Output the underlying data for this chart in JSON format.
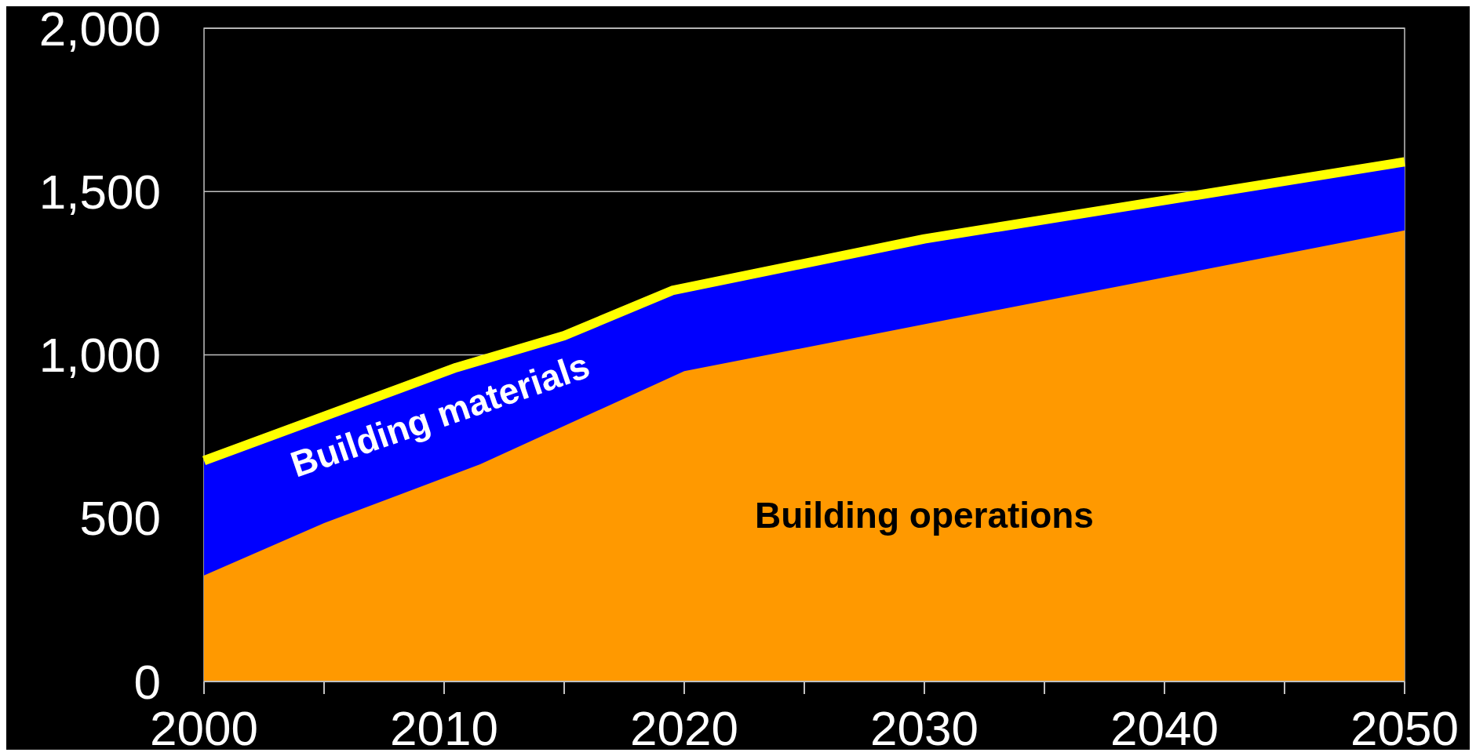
{
  "chart_data": {
    "type": "area",
    "xlim": [
      2000,
      2050
    ],
    "ylim": [
      0,
      2000
    ],
    "xticks": [
      2000,
      {
        "value": 2005,
        "label": null
      },
      2010,
      {
        "value": 2015,
        "label": null
      },
      2020,
      {
        "value": 2025,
        "label": null
      },
      2030,
      {
        "value": 2035,
        "label": null
      },
      2040,
      {
        "value": 2045,
        "label": null
      },
      2050
    ],
    "yticks": [
      0,
      {
        "value": 500,
        "label": "500"
      },
      {
        "value": 1000,
        "label": "1,000"
      },
      {
        "value": 1500,
        "label": "1,500"
      },
      {
        "value": 2000,
        "label": "2,000"
      }
    ],
    "grid": "y",
    "series": [
      {
        "name": "Building materials",
        "color": "#0000ff",
        "x": [
          2000,
          2010.5,
          2015,
          2019.5,
          2030,
          2050
        ],
        "values": [
          676,
          961,
          1059,
          1197,
          1355,
          1591
        ]
      },
      {
        "name": "Building operations",
        "color": "#ff9900",
        "x": [
          2000,
          2005,
          2011.5,
          2020,
          2050
        ],
        "values": [
          325,
          485,
          665,
          950,
          1381
        ]
      },
      {
        "type": "line",
        "color": "#ffff00",
        "x": [
          2000,
          2010.5,
          2015,
          2019.5,
          2030,
          2050
        ],
        "values": [
          676,
          961,
          1059,
          1197,
          1355,
          1591
        ]
      }
    ]
  }
}
